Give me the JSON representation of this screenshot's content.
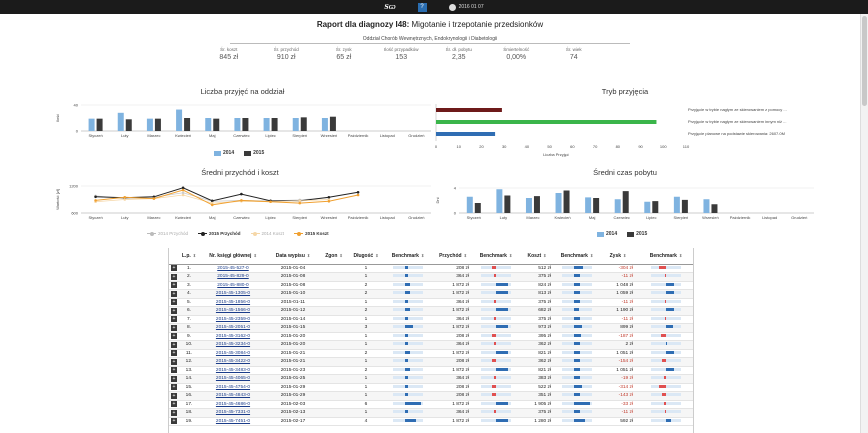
{
  "topbar": {
    "logo": "ЅѠ",
    "badge": "?",
    "date": "2016 01 07"
  },
  "report": {
    "title_bold": "Raport dla diagnozy I48:",
    "title_rest": " Migotanie i trzepotanie przedsionków",
    "department": "Oddział Chorób Wewnętrznych, Endokrynologii i Diabetologii"
  },
  "stats": [
    {
      "label": "Śr. koszt",
      "value": "845 zł"
    },
    {
      "label": "Śr. przychód",
      "value": "910 zł"
    },
    {
      "label": "Śr. zysk",
      "value": "65 zł"
    },
    {
      "label": "Ilość przypadków",
      "value": "153"
    },
    {
      "label": "Śr. dł. pobytu",
      "value": "2,35"
    },
    {
      "label": "Śmiertelność",
      "value": "0,00%"
    },
    {
      "label": "Śr. wiek",
      "value": "74"
    }
  ],
  "colors": {
    "y2014": "#7fb3e0",
    "y2015": "#3a3a3a",
    "green": "#3ab54a",
    "darkred": "#6e1a1a",
    "blue": "#2f6db3",
    "orange": "#f0a030",
    "red": "#e05050"
  },
  "months": [
    "Styczeń",
    "Luty",
    "Marzec",
    "Kwiecień",
    "Maj",
    "Czerwiec",
    "Lipiec",
    "Sierpień",
    "Wrzesień",
    "Październik",
    "Listopad",
    "Grudzień"
  ],
  "chart_data": [
    {
      "type": "bar",
      "title": "Liczba przyjęć na oddział",
      "ylabel": "Ilość",
      "ylim": [
        0,
        40
      ],
      "yticks": [
        "0",
        "40"
      ],
      "series": [
        {
          "name": "2014",
          "values": [
            19,
            28,
            19,
            33,
            20,
            20,
            20,
            20,
            20,
            0,
            0,
            0
          ]
        },
        {
          "name": "2015",
          "values": [
            19,
            18,
            19,
            20,
            19,
            20,
            20,
            21,
            22,
            0,
            0,
            0
          ]
        }
      ]
    },
    {
      "type": "bar",
      "orientation": "horizontal",
      "title": "Tryb przyjęcia",
      "xlabel": "Liczba Przyjęć",
      "xlim": [
        0,
        110
      ],
      "xticks": [
        "0",
        "10",
        "20",
        "30",
        "40",
        "50",
        "60",
        "70",
        "80",
        "90",
        "100",
        "110"
      ],
      "categories": [
        "Przyjęcie w trybie nagłym ze skierowaniem z pomocy ...",
        "Przyjęcie w trybie nagłym ze skierowaniem innym niż ...",
        "Przyjęcie planowe na podstawie skierowania: 2607.0M"
      ],
      "values": [
        29,
        97,
        26
      ]
    },
    {
      "type": "line",
      "title": "Średni przychód i koszt",
      "ylabel": "Wartość [zł]",
      "ylim": [
        600,
        1200
      ],
      "yticks": [
        "600",
        "1200"
      ],
      "series": [
        {
          "name": "2014 Przychód",
          "values": [
            980,
            920,
            950,
            1050,
            860,
            880,
            870,
            890,
            940,
            null,
            null,
            null
          ]
        },
        {
          "name": "2015 Przychód",
          "values": [
            960,
            940,
            960,
            1160,
            870,
            1020,
            870,
            870,
            950,
            1060,
            null,
            null
          ]
        },
        {
          "name": "2014 Koszt",
          "values": [
            850,
            900,
            920,
            1000,
            820,
            860,
            850,
            870,
            900,
            null,
            null,
            null
          ]
        },
        {
          "name": "2015 Koszt",
          "values": [
            880,
            950,
            920,
            1110,
            780,
            880,
            850,
            820,
            860,
            1000,
            null,
            null
          ]
        }
      ]
    },
    {
      "type": "bar",
      "title": "Średni czas pobytu",
      "ylabel": "Dni",
      "ylim": [
        0,
        4
      ],
      "yticks": [
        "0",
        "4"
      ],
      "series": [
        {
          "name": "2014",
          "values": [
            2.6,
            3.8,
            2.4,
            3.2,
            2.5,
            2.2,
            1.8,
            2.6,
            2.2,
            0,
            0,
            0
          ]
        },
        {
          "name": "2015",
          "values": [
            1.6,
            2.8,
            2.7,
            3.6,
            2.4,
            3.5,
            1.9,
            2.1,
            1.4,
            0,
            0,
            0
          ]
        }
      ]
    }
  ],
  "table": {
    "headers": [
      "L.p.",
      "Nr. księgi głównej",
      "Data wypisu",
      "Zgon",
      "Długość",
      "Benchmark",
      "Przychód",
      "Benchmark",
      "Koszt",
      "Benchmark",
      "Zysk",
      "Benchmark"
    ],
    "rows": [
      [
        "1.",
        "2015-45-527-0",
        "2015-01-04",
        "",
        "1",
        "208 zł",
        "512 zł",
        "-304 zł"
      ],
      [
        "2.",
        "2015-45-829-0",
        "2015-01-08",
        "",
        "1",
        "364 zł",
        "375 zł",
        "-11 zł"
      ],
      [
        "3.",
        "2015-45-880-0",
        "2015-01-08",
        "",
        "2",
        "1 872 zł",
        "824 zł",
        "1 048 zł"
      ],
      [
        "4.",
        "2015-45-1305-0",
        "2015-01-10",
        "",
        "2",
        "1 872 zł",
        "813 zł",
        "1 059 zł"
      ],
      [
        "5.",
        "2015-45-1856-0",
        "2015-01-11",
        "",
        "1",
        "364 zł",
        "375 zł",
        "-11 zł"
      ],
      [
        "6.",
        "2015-45-1566-0",
        "2015-01-12",
        "",
        "2",
        "1 872 zł",
        "682 zł",
        "1 190 zł"
      ],
      [
        "7.",
        "2015-45-2359-0",
        "2015-01-14",
        "",
        "1",
        "364 zł",
        "375 zł",
        "-11 zł"
      ],
      [
        "8.",
        "2015-45-2051-0",
        "2015-01-15",
        "",
        "3",
        "1 872 zł",
        "973 zł",
        "899 zł"
      ],
      [
        "9.",
        "2015-45-3162-0",
        "2015-01-20",
        "",
        "1",
        "208 zł",
        "395 zł",
        "-187 zł"
      ],
      [
        "10.",
        "2015-45-3234-0",
        "2015-01-20",
        "",
        "1",
        "364 zł",
        "362 zł",
        "2 zł"
      ],
      [
        "11.",
        "2015-45-3084-0",
        "2015-01-21",
        "",
        "2",
        "1 872 zł",
        "821 zł",
        "1 051 zł"
      ],
      [
        "12.",
        "2015-45-3422-0",
        "2015-01-21",
        "",
        "1",
        "208 zł",
        "362 zł",
        "-154 zł"
      ],
      [
        "13.",
        "2015-45-3483-0",
        "2015-01-23",
        "",
        "2",
        "1 872 zł",
        "821 zł",
        "1 051 zł"
      ],
      [
        "14.",
        "2015-45-4065-0",
        "2015-01-25",
        "",
        "1",
        "364 zł",
        "383 zł",
        "-19 zł"
      ],
      [
        "15.",
        "2015-45-4754-0",
        "2015-01-29",
        "",
        "1",
        "208 zł",
        "522 zł",
        "-314 zł"
      ],
      [
        "16.",
        "2015-45-4843-0",
        "2015-01-29",
        "",
        "1",
        "208 zł",
        "351 zł",
        "-143 zł"
      ],
      [
        "17.",
        "2015-45-4686-0",
        "2015-02-03",
        "",
        "6",
        "1 872 zł",
        "1 905 zł",
        "-33 zł"
      ],
      [
        "18.",
        "2015-45-7331-0",
        "2015-02-13",
        "",
        "1",
        "364 zł",
        "375 zł",
        "-11 zł"
      ],
      [
        "19.",
        "2015-45-7451-0",
        "2015-02-17",
        "",
        "4",
        "1 872 zł",
        "1 280 zł",
        "592 zł"
      ]
    ],
    "benchmarks": [
      [
        0.15,
        0.2,
        0.5,
        -0.5
      ],
      [
        0.15,
        0.35,
        0.35,
        -0.1
      ],
      [
        0.3,
        0.8,
        0.35,
        0.5
      ],
      [
        0.3,
        0.8,
        0.35,
        0.5
      ],
      [
        0.15,
        0.35,
        0.35,
        -0.1
      ],
      [
        0.3,
        0.8,
        0.3,
        0.55
      ],
      [
        0.15,
        0.35,
        0.35,
        -0.1
      ],
      [
        0.45,
        0.8,
        0.45,
        0.45
      ],
      [
        0.15,
        0.2,
        0.4,
        -0.35
      ],
      [
        0.15,
        0.35,
        0.35,
        0.05
      ],
      [
        0.3,
        0.8,
        0.35,
        0.5
      ],
      [
        0.15,
        0.2,
        0.35,
        -0.3
      ],
      [
        0.3,
        0.8,
        0.35,
        0.5
      ],
      [
        0.15,
        0.35,
        0.35,
        -0.12
      ],
      [
        0.15,
        0.2,
        0.45,
        -0.5
      ],
      [
        0.15,
        0.2,
        0.35,
        -0.3
      ],
      [
        0.9,
        0.8,
        0.9,
        -0.15
      ],
      [
        0.15,
        0.35,
        0.35,
        -0.1
      ],
      [
        0.6,
        0.8,
        0.6,
        0.35
      ]
    ]
  }
}
